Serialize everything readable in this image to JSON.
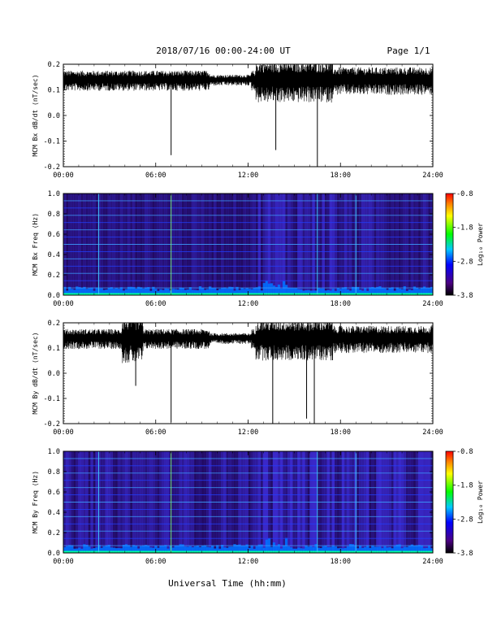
{
  "header": {
    "title": "2018/07/16  00:00-24:00 UT",
    "page": "Page 1/1"
  },
  "footer": {
    "xlabel": "Universal Time (hh:mm)"
  },
  "chart_data": [
    {
      "type": "line",
      "ylabel": "MCM Bx dB/dt (nT/sec)",
      "xlim": [
        "00:00",
        "24:00"
      ],
      "x_ticks": [
        "00:00",
        "06:00",
        "12:00",
        "18:00",
        "24:00"
      ],
      "ylim": [
        -0.2,
        0.2
      ],
      "y_ticks": [
        "0.2",
        "0.1",
        "0.0",
        "-0.1",
        "-0.2"
      ],
      "baseline": 0.14,
      "spikes": [
        {
          "hour": 7.0,
          "value": -0.155
        },
        {
          "hour": 13.8,
          "value": -0.135
        },
        {
          "hour": 16.5,
          "value": -0.2
        }
      ]
    },
    {
      "type": "heatmap",
      "ylabel": "MCM Bx Freq (Hz)",
      "xlim": [
        "00:00",
        "24:00"
      ],
      "x_ticks": [
        "00:00",
        "06:00",
        "12:00",
        "18:00",
        "24:00"
      ],
      "ylim": [
        0.0,
        1.0
      ],
      "y_ticks": [
        "1.0",
        "0.8",
        "0.6",
        "0.4",
        "0.2",
        "0.0"
      ],
      "colorbar": {
        "label": "Log₁₀ Power",
        "ticks": [
          "-0.8",
          "-1.8",
          "-2.8",
          "-3.8"
        ],
        "range": [
          -3.8,
          -0.8
        ]
      }
    },
    {
      "type": "line",
      "ylabel": "MCM By dB/dt (nT/sec)",
      "xlim": [
        "00:00",
        "24:00"
      ],
      "x_ticks": [
        "00:00",
        "06:00",
        "12:00",
        "18:00",
        "24:00"
      ],
      "ylim": [
        -0.2,
        0.2
      ],
      "y_ticks": [
        "0.2",
        "0.1",
        "0.0",
        "-0.1",
        "-0.2"
      ],
      "baseline": 0.14,
      "spikes": [
        {
          "hour": 4.7,
          "value": -0.05
        },
        {
          "hour": 7.0,
          "value": -0.195
        },
        {
          "hour": 13.6,
          "value": -0.2
        },
        {
          "hour": 15.8,
          "value": -0.18
        },
        {
          "hour": 16.3,
          "value": -0.2
        }
      ]
    },
    {
      "type": "heatmap",
      "ylabel": "MCM By Freq (Hz)",
      "xlim": [
        "00:00",
        "24:00"
      ],
      "x_ticks": [
        "00:00",
        "06:00",
        "12:00",
        "18:00",
        "24:00"
      ],
      "ylim": [
        0.0,
        1.0
      ],
      "y_ticks": [
        "1.0",
        "0.8",
        "0.6",
        "0.4",
        "0.2",
        "0.0"
      ],
      "colorbar": {
        "label": "Log₁₀ Power",
        "ticks": [
          "-0.8",
          "-1.8",
          "-2.8",
          "-3.8"
        ],
        "range": [
          -3.8,
          -0.8
        ]
      }
    }
  ]
}
